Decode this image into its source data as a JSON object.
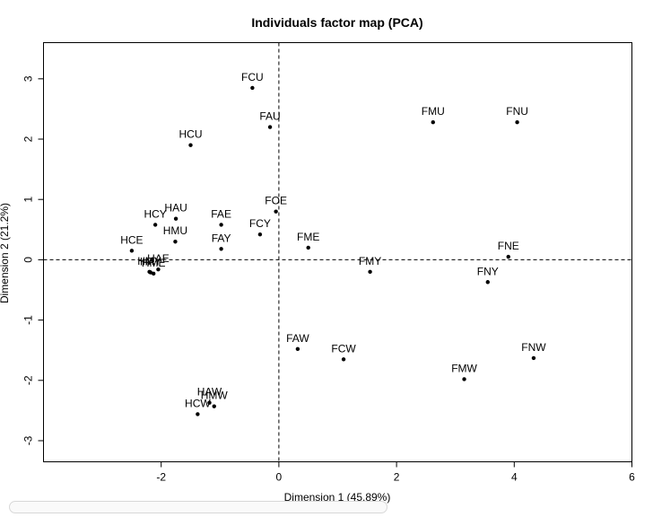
{
  "chart_data": {
    "type": "scatter",
    "title": "Individuals factor map (PCA)",
    "xlabel": "Dimension 1 (45.89%)",
    "ylabel": "Dimension 2 (21.2%)",
    "xlim": [
      -4,
      6
    ],
    "ylim": [
      -3.35,
      3.6
    ],
    "xticks": [
      -2,
      0,
      2,
      4,
      6
    ],
    "yticks": [
      -3,
      -2,
      -1,
      0,
      1,
      2,
      3
    ],
    "reference_lines": {
      "x": 0,
      "y": 0,
      "style": "dashed"
    },
    "grid": false,
    "points": [
      {
        "label": "FCU",
        "x": -0.45,
        "y": 2.85
      },
      {
        "label": "FAU",
        "x": -0.15,
        "y": 2.2
      },
      {
        "label": "FMU",
        "x": 2.62,
        "y": 2.28
      },
      {
        "label": "FNU",
        "x": 4.05,
        "y": 2.28
      },
      {
        "label": "HCU",
        "x": -1.5,
        "y": 1.9
      },
      {
        "label": "FOE",
        "x": -0.05,
        "y": 0.8
      },
      {
        "label": "HCY",
        "x": -2.1,
        "y": 0.58
      },
      {
        "label": "HAU",
        "x": -1.75,
        "y": 0.68
      },
      {
        "label": "FAE",
        "x": -0.98,
        "y": 0.58
      },
      {
        "label": "FCY",
        "x": -0.32,
        "y": 0.42
      },
      {
        "label": "HMU",
        "x": -1.76,
        "y": 0.3
      },
      {
        "label": "FAY",
        "x": -0.98,
        "y": 0.18
      },
      {
        "label": "FME",
        "x": 0.5,
        "y": 0.2
      },
      {
        "label": "HCE",
        "x": -2.5,
        "y": 0.15
      },
      {
        "label": "FNE",
        "x": 3.9,
        "y": 0.05
      },
      {
        "label": "HAE",
        "x": -2.05,
        "y": -0.16
      },
      {
        "label": "HME",
        "x": -2.13,
        "y": -0.23
      },
      {
        "label": "HAY",
        "x": -2.18,
        "y": -0.21
      },
      {
        "label": "HMY",
        "x": -2.2,
        "y": -0.2
      },
      {
        "label": "FMY",
        "x": 1.55,
        "y": -0.2
      },
      {
        "label": "FNY",
        "x": 3.55,
        "y": -0.37
      },
      {
        "label": "FAW",
        "x": 0.32,
        "y": -1.48
      },
      {
        "label": "FCW",
        "x": 1.1,
        "y": -1.65
      },
      {
        "label": "FNW",
        "x": 4.33,
        "y": -1.63
      },
      {
        "label": "FMW",
        "x": 3.15,
        "y": -1.98
      },
      {
        "label": "HAW",
        "x": -1.18,
        "y": -2.37
      },
      {
        "label": "HMW",
        "x": -1.1,
        "y": -2.43
      },
      {
        "label": "HCW",
        "x": -1.38,
        "y": -2.56
      }
    ]
  }
}
